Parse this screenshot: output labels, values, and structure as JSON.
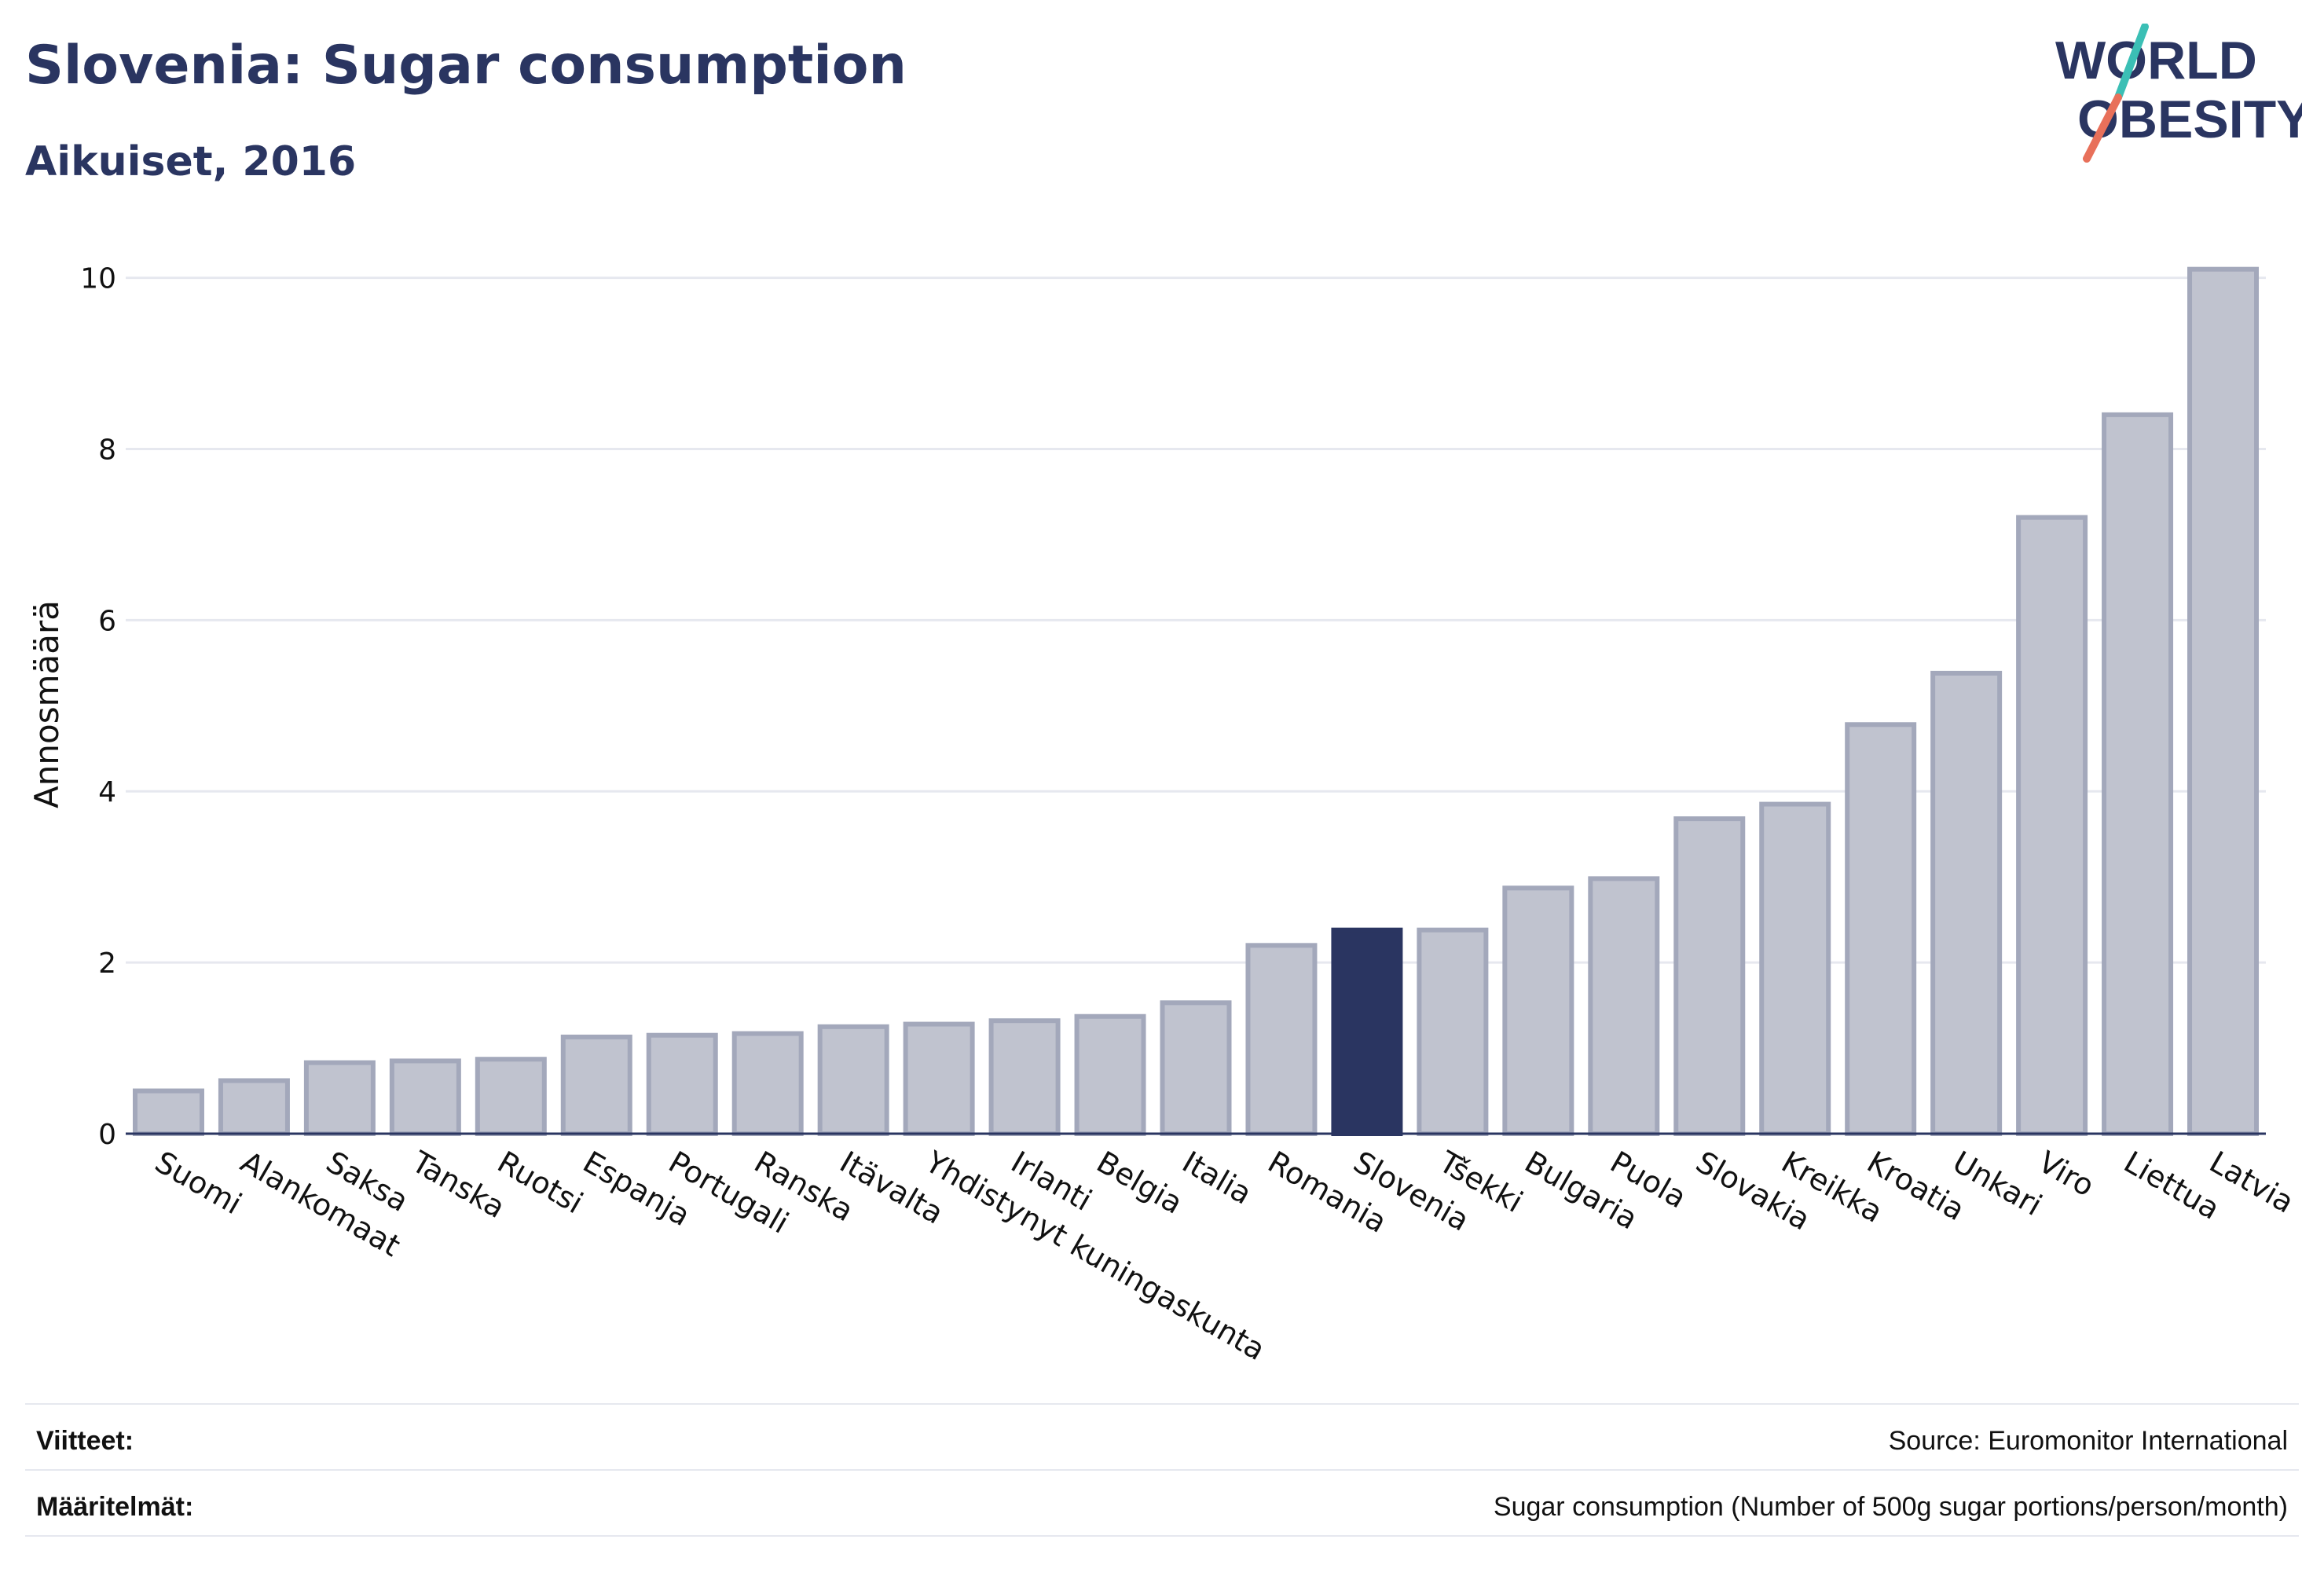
{
  "header": {
    "title": "Slovenia: Sugar consumption",
    "subtitle": "Aikuiset, 2016"
  },
  "logo": {
    "line1": "WORLD",
    "line2": "OBESITY",
    "colors": {
      "text": "#2a3561",
      "slash_top": "#3bbfb5",
      "slash_bottom": "#e8705a"
    }
  },
  "chart_data": {
    "type": "bar",
    "title": "Slovenia: Sugar consumption",
    "subtitle": "Aikuiset, 2016",
    "xlabel": "",
    "ylabel": "Annosmäärä",
    "ylim": [
      0,
      10.4
    ],
    "yticks": [
      0,
      2,
      4,
      6,
      8,
      10
    ],
    "grid": true,
    "highlight": "Slovenia",
    "colors": {
      "bar": "#c0c3cf",
      "bar_stroke": "#a3a8bb",
      "highlight": "#2a3561",
      "grid": "#e6e8ef"
    },
    "categories": [
      "Suomi",
      "Alankomaat",
      "Saksa",
      "Tanska",
      "Ruotsi",
      "Espanja",
      "Portugali",
      "Ranska",
      "Itävalta",
      "Yhdistynyt kuningaskunta",
      "Irlanti",
      "Belgia",
      "Italia",
      "Romania",
      "Slovenia",
      "Tšekki",
      "Bulgaria",
      "Puola",
      "Slovakia",
      "Kreikka",
      "Kroatia",
      "Unkari",
      "Viro",
      "Liettua",
      "Latvia"
    ],
    "values": [
      0.5,
      0.62,
      0.83,
      0.85,
      0.87,
      1.13,
      1.15,
      1.17,
      1.25,
      1.28,
      1.32,
      1.37,
      1.53,
      2.2,
      2.38,
      2.38,
      2.87,
      2.98,
      3.68,
      3.85,
      4.78,
      5.38,
      7.2,
      8.4,
      10.1
    ]
  },
  "footer": {
    "references_label": "Viitteet:",
    "references_value": "Source: Euromonitor International",
    "definitions_label": "Määritelmät:",
    "definitions_value": "Sugar consumption (Number of 500g sugar portions/person/month)"
  }
}
